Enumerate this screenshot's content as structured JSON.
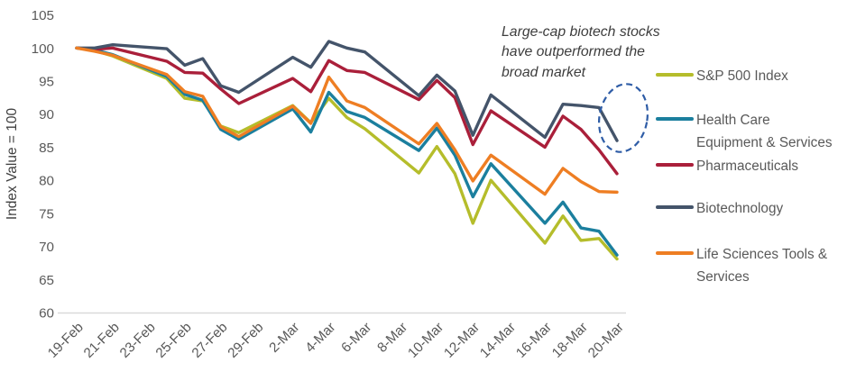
{
  "chart_data": {
    "type": "line",
    "title": "",
    "ylabel": "Index Value = 100",
    "ylim": [
      60,
      105
    ],
    "ytick_step": 5,
    "grid": false,
    "legend_position": "right",
    "x_tick_labels": [
      "19-Feb",
      "21-Feb",
      "23-Feb",
      "25-Feb",
      "27-Feb",
      "29-Feb",
      "2-Mar",
      "4-Mar",
      "6-Mar",
      "8-Mar",
      "10-Mar",
      "12-Mar",
      "14-Mar",
      "16-Mar",
      "18-Mar",
      "20-Mar"
    ],
    "x_tick_day_offsets": [
      0,
      2,
      4,
      6,
      8,
      10,
      12,
      14,
      16,
      18,
      20,
      22,
      24,
      26,
      28,
      30
    ],
    "dates": [
      "19-Feb",
      "20-Feb",
      "21-Feb",
      "24-Feb",
      "25-Feb",
      "26-Feb",
      "27-Feb",
      "28-Feb",
      "2-Mar",
      "3-Mar",
      "4-Mar",
      "5-Mar",
      "6-Mar",
      "9-Mar",
      "10-Mar",
      "11-Mar",
      "12-Mar",
      "13-Mar",
      "16-Mar",
      "17-Mar",
      "18-Mar",
      "19-Mar",
      "20-Mar"
    ],
    "day_offsets": [
      0,
      1,
      2,
      5,
      6,
      7,
      8,
      9,
      12,
      13,
      14,
      15,
      16,
      19,
      20,
      21,
      22,
      23,
      26,
      27,
      28,
      29,
      30
    ],
    "series": [
      {
        "name": "S&P 500 Index",
        "color": "#b5bd2b",
        "values": [
          100,
          99.6,
          98.8,
          95.4,
          92.4,
          92.0,
          88.2,
          87.2,
          91.3,
          88.7,
          92.4,
          89.5,
          87.8,
          81.1,
          85.1,
          81.0,
          73.5,
          80.0,
          70.5,
          74.6,
          70.9,
          71.2,
          68.1
        ]
      },
      {
        "name": "Health Care Equipment & Services",
        "color": "#1b7f9e",
        "values": [
          100,
          99.7,
          99.0,
          95.7,
          93.0,
          92.1,
          87.7,
          86.2,
          90.8,
          87.3,
          93.3,
          90.4,
          89.5,
          84.5,
          87.9,
          83.8,
          77.5,
          82.5,
          73.5,
          76.7,
          72.8,
          72.3,
          68.7
        ]
      },
      {
        "name": "Pharmaceuticals",
        "color": "#aa1f3a",
        "values": [
          100,
          99.8,
          100.0,
          98.0,
          96.3,
          96.2,
          93.8,
          91.6,
          95.4,
          93.4,
          98.1,
          96.6,
          96.3,
          92.2,
          95.1,
          92.5,
          85.4,
          90.5,
          85.0,
          89.7,
          87.7,
          84.6,
          81.0
        ]
      },
      {
        "name": "Biotechnology",
        "color": "#44546a",
        "values": [
          100,
          100.0,
          100.5,
          99.9,
          97.4,
          98.4,
          94.3,
          93.3,
          98.6,
          97.1,
          101.0,
          100.0,
          99.4,
          92.8,
          95.9,
          93.5,
          86.8,
          92.9,
          86.5,
          91.5,
          91.3,
          91.0,
          86.0
        ]
      },
      {
        "name": "Life Sciences Tools & Services",
        "color": "#ee7e23",
        "values": [
          100,
          99.5,
          98.9,
          96.0,
          93.4,
          92.7,
          88.1,
          86.6,
          91.2,
          88.6,
          95.6,
          92.0,
          91.0,
          85.5,
          88.6,
          84.6,
          79.9,
          83.8,
          77.9,
          81.8,
          79.8,
          78.3,
          78.2
        ]
      }
    ]
  },
  "annotation": {
    "line1": "Large-cap biotech stocks",
    "line2": "have outperformed the",
    "line3": "broad market"
  },
  "highlight_ellipse": {
    "color": "#2e5ca6",
    "style": "dashed",
    "target": "Biotechnology line end"
  },
  "legend": {
    "items": [
      {
        "label": "S&P 500 Index",
        "color": "#b5bd2b",
        "lines": [
          "S&P 500 Index",
          ""
        ]
      },
      {
        "label": "Health Care Equipment & Services",
        "color": "#1b7f9e",
        "lines": [
          "Health Care",
          "Equipment & Services"
        ]
      },
      {
        "label": "Pharmaceuticals",
        "color": "#aa1f3a",
        "lines": [
          "Pharmaceuticals",
          ""
        ]
      },
      {
        "label": "Biotechnology",
        "color": "#44546a",
        "lines": [
          "Biotechnology",
          ""
        ]
      },
      {
        "label": "Life Sciences Tools & Services",
        "color": "#ee7e23",
        "lines": [
          "Life Sciences Tools &",
          "Services"
        ]
      }
    ]
  }
}
